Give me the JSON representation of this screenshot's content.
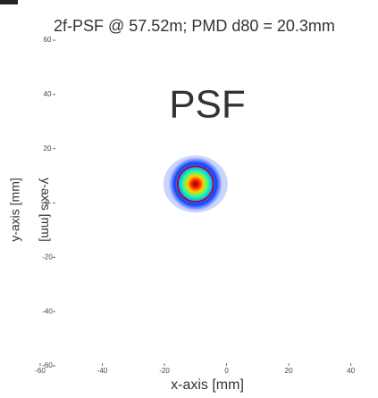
{
  "chart_data": {
    "type": "scatter",
    "title": "2f-PSF @ 57.52m; PMD d80 = 20.3mm",
    "annotation": "PSF",
    "xlabel": "x-axis [mm]",
    "ylabel": "y-axis [mm]",
    "x": [
      -10
    ],
    "y": [
      7
    ],
    "xlim": [
      -60,
      45
    ],
    "ylim": [
      -60,
      60
    ],
    "xticks": [
      -60,
      -40,
      -20,
      0,
      20,
      40
    ],
    "yticks": [
      -60,
      -40,
      -20,
      0,
      20,
      40,
      60
    ]
  }
}
